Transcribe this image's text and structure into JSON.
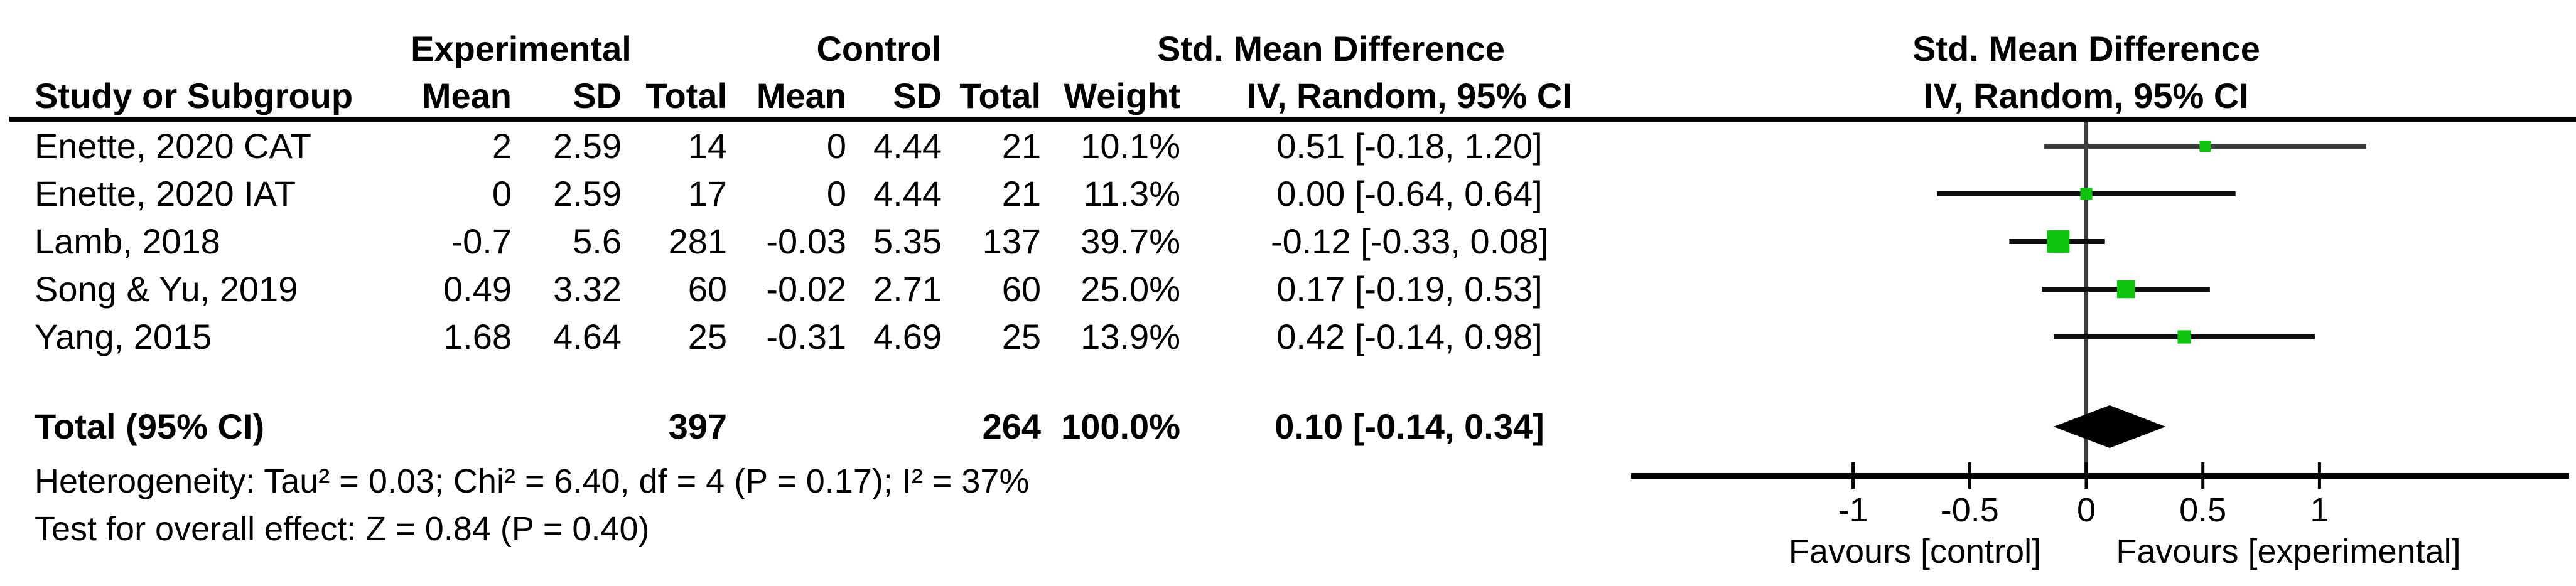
{
  "table": {
    "group_headers": {
      "experimental": "Experimental",
      "control": "Control",
      "smd": "Std. Mean Difference"
    },
    "columns": {
      "study": "Study or Subgroup",
      "mean": "Mean",
      "sd": "SD",
      "total": "Total",
      "weight": "Weight",
      "ci": "IV, Random, 95% CI"
    }
  },
  "plot_header": {
    "title": "Std. Mean Difference",
    "subtitle": "IV, Random, 95% CI"
  },
  "chart_data": {
    "type": "forest",
    "effect_measure": "Std. Mean Difference",
    "model": "IV, Random, 95% CI",
    "studies": [
      {
        "name": "Enette, 2020 CAT",
        "mean_e": "2",
        "sd_e": "2.59",
        "total_e": "14",
        "mean_c": "0",
        "sd_c": "4.44",
        "total_c": "21",
        "weight": "10.1%",
        "ci_text": "0.51 [-0.18, 1.20]",
        "est": 0.51,
        "lo": -0.18,
        "hi": 1.2,
        "weight_pct": 10.1
      },
      {
        "name": "Enette, 2020 IAT",
        "mean_e": "0",
        "sd_e": "2.59",
        "total_e": "17",
        "mean_c": "0",
        "sd_c": "4.44",
        "total_c": "21",
        "weight": "11.3%",
        "ci_text": "0.00 [-0.64, 0.64]",
        "est": 0.0,
        "lo": -0.64,
        "hi": 0.64,
        "weight_pct": 11.3
      },
      {
        "name": "Lamb, 2018",
        "mean_e": "-0.7",
        "sd_e": "5.6",
        "total_e": "281",
        "mean_c": "-0.03",
        "sd_c": "5.35",
        "total_c": "137",
        "weight": "39.7%",
        "ci_text": "-0.12 [-0.33, 0.08]",
        "est": -0.12,
        "lo": -0.33,
        "hi": 0.08,
        "weight_pct": 39.7
      },
      {
        "name": "Song & Yu, 2019",
        "mean_e": "0.49",
        "sd_e": "3.32",
        "total_e": "60",
        "mean_c": "-0.02",
        "sd_c": "2.71",
        "total_c": "60",
        "weight": "25.0%",
        "ci_text": "0.17 [-0.19, 0.53]",
        "est": 0.17,
        "lo": -0.19,
        "hi": 0.53,
        "weight_pct": 25.0
      },
      {
        "name": "Yang, 2015",
        "mean_e": "1.68",
        "sd_e": "4.64",
        "total_e": "25",
        "mean_c": "-0.31",
        "sd_c": "4.69",
        "total_c": "25",
        "weight": "13.9%",
        "ci_text": "0.42 [-0.14, 0.98]",
        "est": 0.42,
        "lo": -0.14,
        "hi": 0.98,
        "weight_pct": 13.9
      }
    ],
    "total": {
      "label": "Total (95% CI)",
      "total_e": "397",
      "total_c": "264",
      "weight": "100.0%",
      "ci_text": "0.10 [-0.14, 0.34]",
      "est": 0.1,
      "lo": -0.14,
      "hi": 0.34
    },
    "heterogeneity": "Heterogeneity: Tau² = 0.03; Chi² = 6.40, df = 4 (P = 0.17); I² = 37%",
    "overall_effect": "Test for overall effect: Z = 0.84 (P = 0.40)",
    "axis": {
      "ticks": [
        -1,
        -0.5,
        0,
        0.5,
        1
      ],
      "xlim": [
        -1.95,
        2.07
      ],
      "favours_left": "Favours [control]",
      "favours_right": "Favours [experimental]"
    },
    "colors": {
      "square_green": "#0ec20e",
      "line_black": "#0f0f0f",
      "first_row_line": "#3f3f3f",
      "zero_line_gray": "#3d3d3d",
      "diamond": "#000000"
    }
  }
}
